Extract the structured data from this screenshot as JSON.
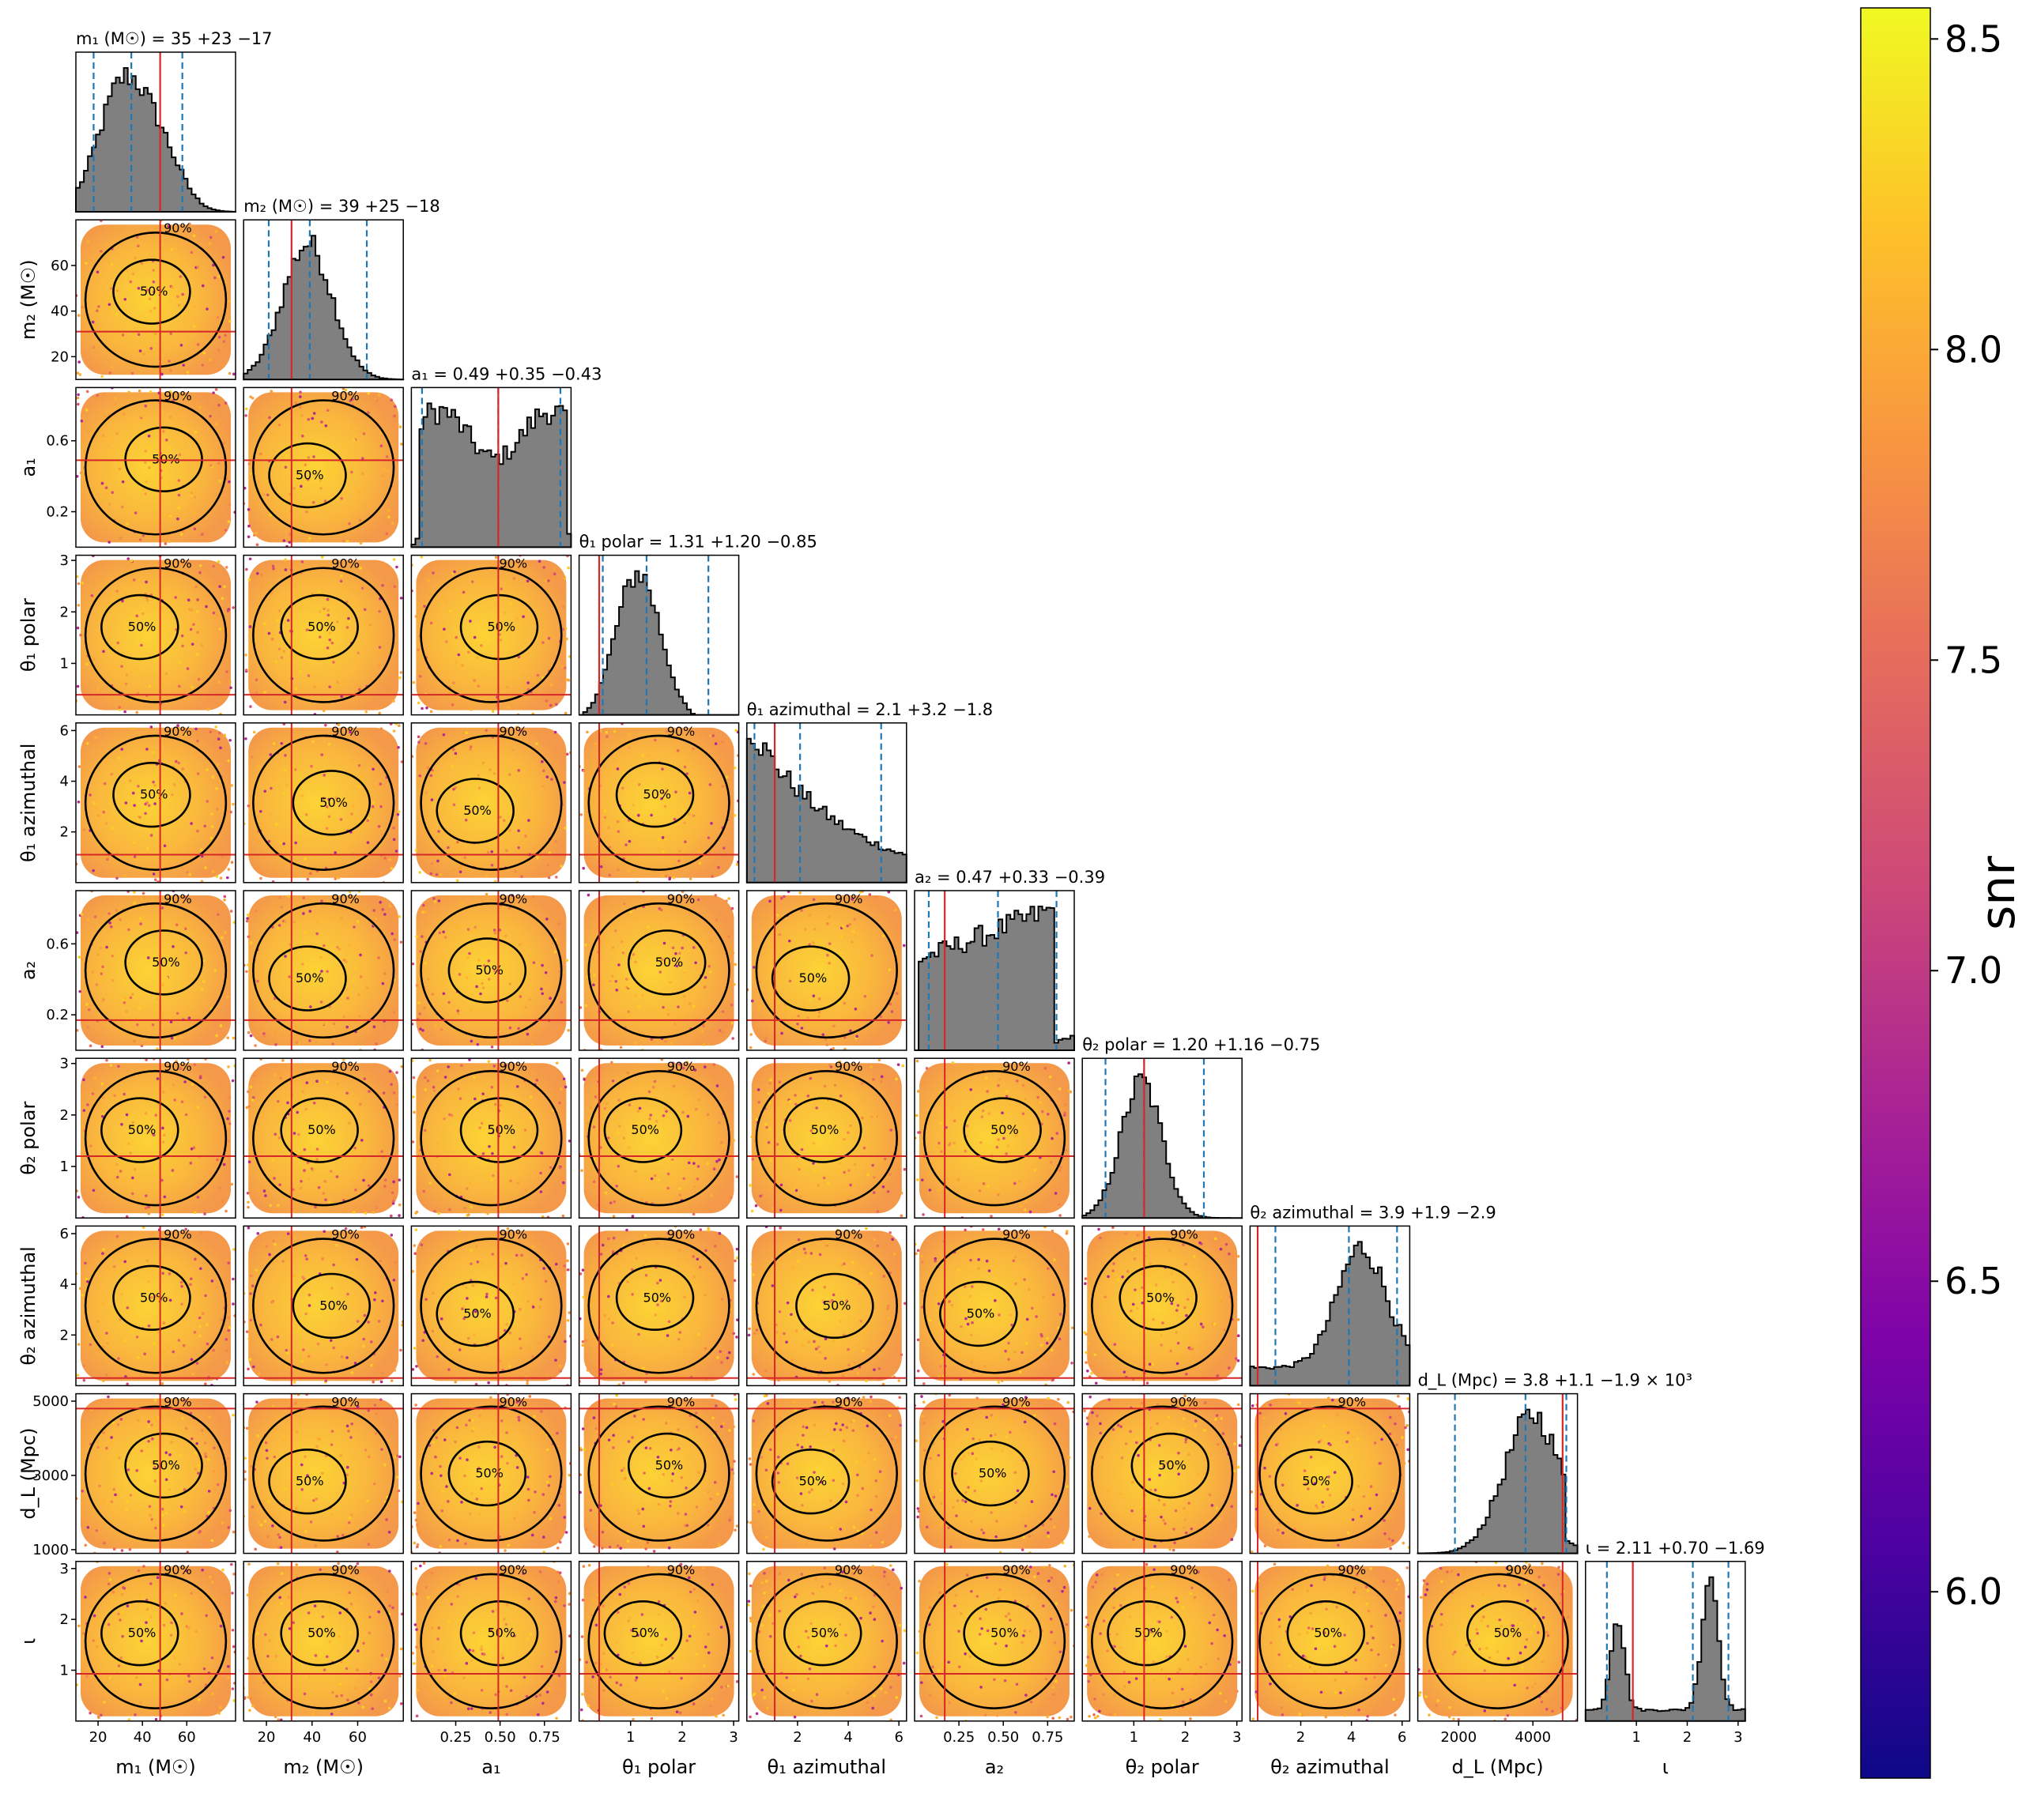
{
  "chart_data": {
    "type": "scatter",
    "subtype": "corner-plot",
    "parameters": [
      {
        "key": "m1",
        "axis_label": "m₁ (M☉)",
        "title": "m₁ (M☉) = 35 +23 −17",
        "median": 35,
        "lo": 18,
        "hi": 58,
        "injected": 48,
        "range": [
          10,
          82
        ],
        "ticks": [
          20,
          40,
          60
        ]
      },
      {
        "key": "m2",
        "axis_label": "m₂ (M☉)",
        "title": "m₂ (M☉) = 39 +25 −18",
        "median": 39,
        "lo": 21,
        "hi": 64,
        "injected": 31,
        "range": [
          10,
          80
        ],
        "ticks": [
          20,
          40,
          60
        ]
      },
      {
        "key": "a1",
        "axis_label": "a₁",
        "title": "a₁ = 0.49 +0.35 −0.43",
        "median": 0.49,
        "lo": 0.06,
        "hi": 0.84,
        "injected": 0.49,
        "range": [
          0.0,
          0.9
        ],
        "ticks": [
          0.25,
          0.5,
          0.75
        ]
      },
      {
        "key": "theta1_polar",
        "axis_label": "θ₁ polar",
        "title": "θ₁ polar = 1.31 +1.20 −0.85",
        "median": 1.31,
        "lo": 0.46,
        "hi": 2.51,
        "injected": 0.39,
        "range": [
          0.0,
          3.1
        ],
        "ticks": [
          1,
          2,
          3
        ]
      },
      {
        "key": "theta1_azimuthal",
        "axis_label": "θ₁ azimuthal",
        "title": "θ₁ azimuthal = 2.1 +3.2 −1.8",
        "median": 2.1,
        "lo": 0.3,
        "hi": 5.3,
        "injected": 1.1,
        "range": [
          0.0,
          6.3
        ],
        "ticks": [
          2,
          4,
          6
        ]
      },
      {
        "key": "a2",
        "axis_label": "a₂",
        "title": "a₂ = 0.47 +0.33 −0.39",
        "median": 0.47,
        "lo": 0.08,
        "hi": 0.8,
        "injected": 0.17,
        "range": [
          0.0,
          0.9
        ],
        "ticks": [
          0.25,
          0.5,
          0.75
        ]
      },
      {
        "key": "theta2_polar",
        "axis_label": "θ₂ polar",
        "title": "θ₂ polar = 1.20 +1.16 −0.75",
        "median": 1.2,
        "lo": 0.45,
        "hi": 2.36,
        "injected": 1.2,
        "range": [
          0.0,
          3.1
        ],
        "ticks": [
          1,
          2,
          3
        ]
      },
      {
        "key": "theta2_azimuthal",
        "axis_label": "θ₂ azimuthal",
        "title": "θ₂ azimuthal = 3.9 +1.9 −2.9",
        "median": 3.9,
        "lo": 1.0,
        "hi": 5.8,
        "injected": 0.3,
        "range": [
          0.0,
          6.3
        ],
        "ticks": [
          2,
          4,
          6
        ]
      },
      {
        "key": "dL",
        "axis_label": "d_L (Mpc)",
        "title": "d_L (Mpc) = 3.8 +1.1 −1.9 × 10³",
        "median": 3800,
        "lo": 1900,
        "hi": 4900,
        "injected": 4800,
        "range": [
          900,
          5200
        ],
        "ticks": [
          2000,
          4000
        ]
      },
      {
        "key": "iota",
        "axis_label": "ι",
        "title": "ι = 2.11 +0.70 −1.69",
        "median": 2.11,
        "lo": 0.42,
        "hi": 2.81,
        "injected": 0.93,
        "range": [
          0.0,
          3.14
        ],
        "ticks": [
          1,
          2,
          3
        ]
      }
    ],
    "y_ticks": {
      "m2": [
        20,
        40,
        60
      ],
      "a1": [
        0.2,
        0.6
      ],
      "theta1_polar": [
        1,
        2,
        3
      ],
      "theta1_azimuthal": [
        2,
        4,
        6
      ],
      "a2": [
        0.2,
        0.6
      ],
      "theta2_polar": [
        1,
        2,
        3
      ],
      "theta2_azimuthal": [
        2,
        4,
        6
      ],
      "dL": [
        1000,
        3000,
        5000
      ],
      "iota": [
        1,
        2,
        3
      ]
    },
    "contour_levels": [
      "50%",
      "90%"
    ],
    "colorbar": {
      "label": "snr",
      "range": [
        5.7,
        8.55
      ],
      "ticks": [
        "6.0",
        "6.5",
        "7.0",
        "7.5",
        "8.0",
        "8.5"
      ],
      "colormap": "plasma"
    },
    "colors": {
      "histogram_fill": "#808080",
      "histogram_edge": "#000000",
      "quantile_lines": "#1f77b4",
      "injection_lines": "#d62728",
      "contours": "#000000"
    }
  }
}
